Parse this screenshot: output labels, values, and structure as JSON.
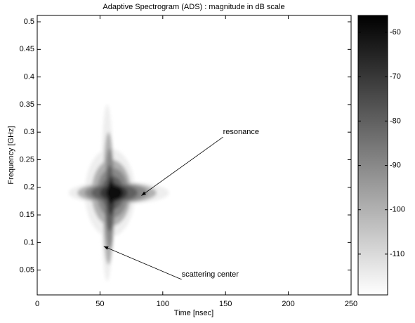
{
  "chart_data": {
    "type": "spectrogram",
    "title": "Adaptive Spectrogram (ADS) : magnitude in dB scale",
    "xlabel": "Time [nsec]",
    "ylabel": "Frequency [GHz]",
    "xlim": [
      0,
      250
    ],
    "xticks": [
      0,
      50,
      100,
      150,
      200,
      250
    ],
    "ylim": [
      0.005,
      0.5115
    ],
    "yticks": [
      0.05,
      0.1,
      0.15,
      0.2,
      0.25,
      0.3,
      0.35,
      0.4,
      0.45,
      0.5
    ],
    "clim": [
      -119.2,
      -56.2
    ],
    "cticks": [
      -110,
      -100,
      -90,
      -80,
      -70,
      -60
    ],
    "colormap": [
      "#ffffff",
      "#000000"
    ],
    "contours": [
      {
        "level": -115,
        "center": [
          58,
          0.19
        ],
        "t_range": [
          25,
          105
        ],
        "f_range": [
          0.03,
          0.35
        ]
      },
      {
        "level": -100,
        "center": [
          59,
          0.19
        ],
        "t_range": [
          32,
          95
        ],
        "f_range": [
          0.06,
          0.3
        ]
      },
      {
        "level": -90,
        "center": [
          60,
          0.19
        ],
        "t_range": [
          38,
          88
        ],
        "f_range": [
          0.09,
          0.27
        ]
      },
      {
        "level": -80,
        "center": [
          60,
          0.19
        ],
        "t_range": [
          43,
          80
        ],
        "f_range": [
          0.12,
          0.24
        ]
      },
      {
        "level": -70,
        "center": [
          61,
          0.19
        ],
        "t_range": [
          50,
          72
        ],
        "f_range": [
          0.15,
          0.22
        ]
      },
      {
        "level": -60,
        "center": [
          61,
          0.19
        ],
        "t_range": [
          55,
          68
        ],
        "f_range": [
          0.17,
          0.21
        ]
      }
    ],
    "annotations": [
      {
        "text": "resonance",
        "xytext": [
          148,
          0.3
        ],
        "xy": [
          83,
          0.185
        ]
      },
      {
        "text": "scattering center",
        "xytext": [
          115,
          0.042
        ],
        "xy": [
          53,
          0.093
        ]
      }
    ]
  }
}
